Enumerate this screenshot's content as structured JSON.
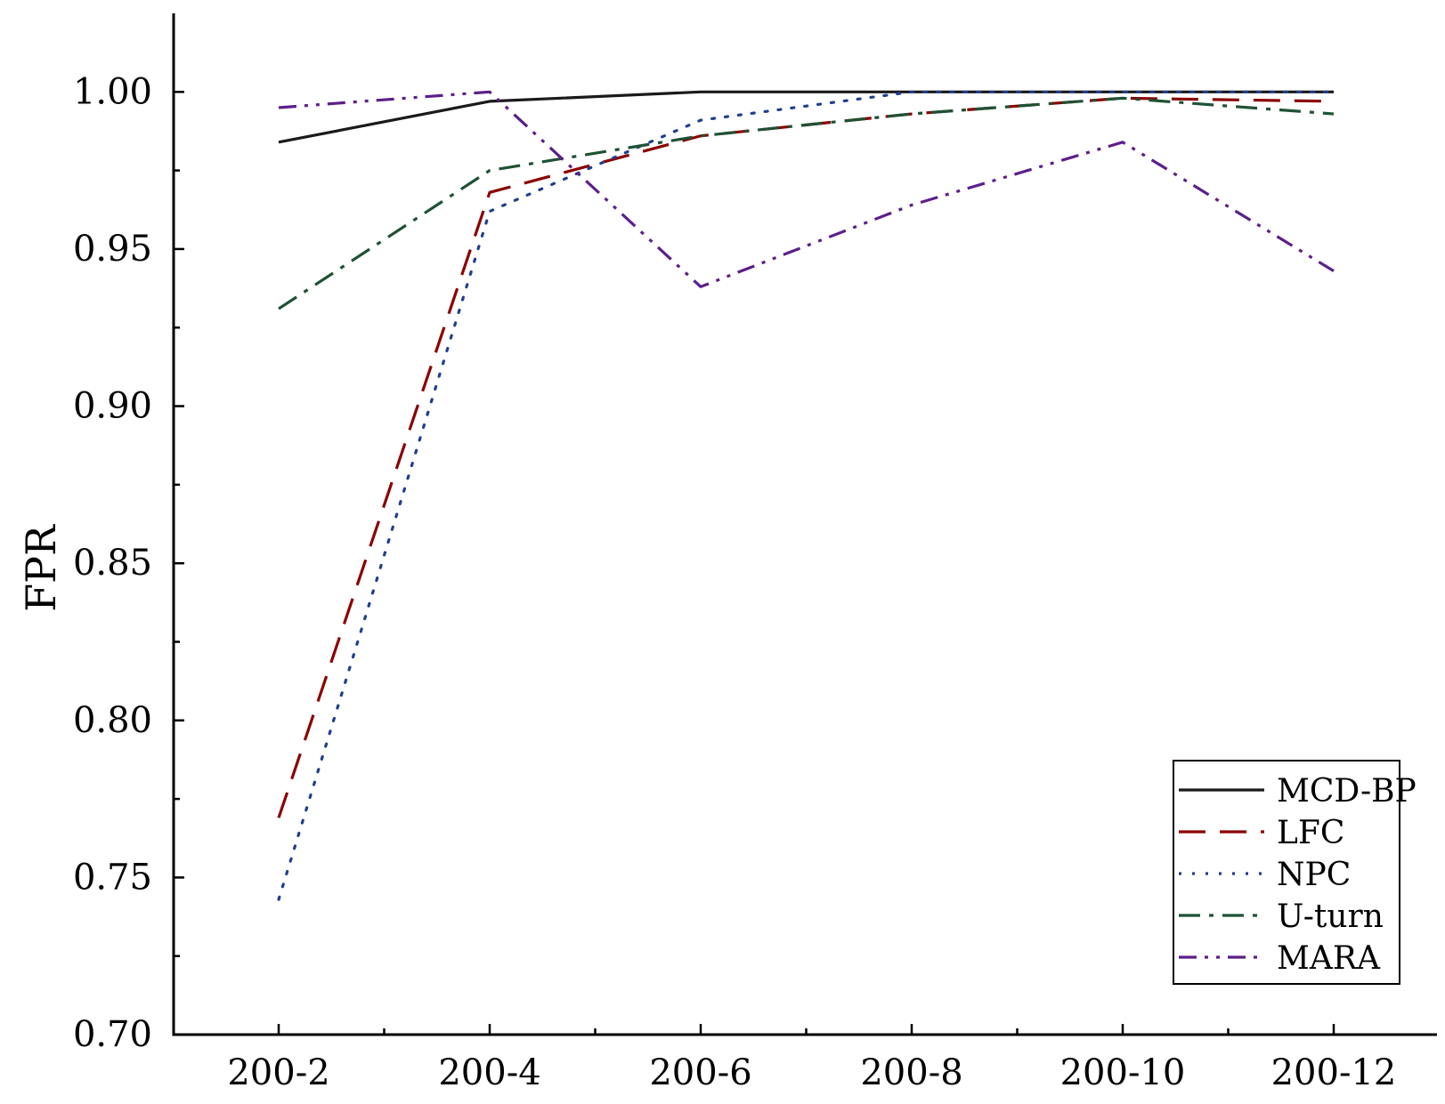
{
  "chart_data": {
    "type": "line",
    "title": "",
    "xlabel": "",
    "ylabel": "FPR",
    "categories": [
      "200-2",
      "200-4",
      "200-6",
      "200-8",
      "200-10",
      "200-12"
    ],
    "ylim": [
      0.7,
      1.025
    ],
    "yticks": [
      0.7,
      0.75,
      0.8,
      0.85,
      0.9,
      0.95,
      1.0
    ],
    "ytick_labels": [
      "0.70",
      "0.75",
      "0.80",
      "0.85",
      "0.90",
      "0.95",
      "1.00"
    ],
    "grid": false,
    "legend_position": "bottom-right",
    "series": [
      {
        "name": "MCD-BP",
        "color": "#1a1a1a",
        "style": "solid",
        "values": [
          0.984,
          0.997,
          1.0,
          1.0,
          1.0,
          1.0
        ]
      },
      {
        "name": "LFC",
        "color": "#8b0000",
        "style": "dash",
        "values": [
          0.769,
          0.968,
          0.986,
          0.993,
          0.998,
          0.997
        ]
      },
      {
        "name": "NPC",
        "color": "#1f3f8f",
        "style": "dot",
        "values": [
          0.743,
          0.962,
          0.991,
          1.0,
          1.0,
          1.0
        ]
      },
      {
        "name": "U-turn",
        "color": "#1e5234",
        "style": "dashdot",
        "values": [
          0.931,
          0.975,
          0.986,
          0.993,
          0.998,
          0.993
        ]
      },
      {
        "name": "MARA",
        "color": "#5b1f8a",
        "style": "dashdotdot",
        "values": [
          0.995,
          1.0,
          0.938,
          0.964,
          0.984,
          0.943
        ]
      }
    ]
  }
}
